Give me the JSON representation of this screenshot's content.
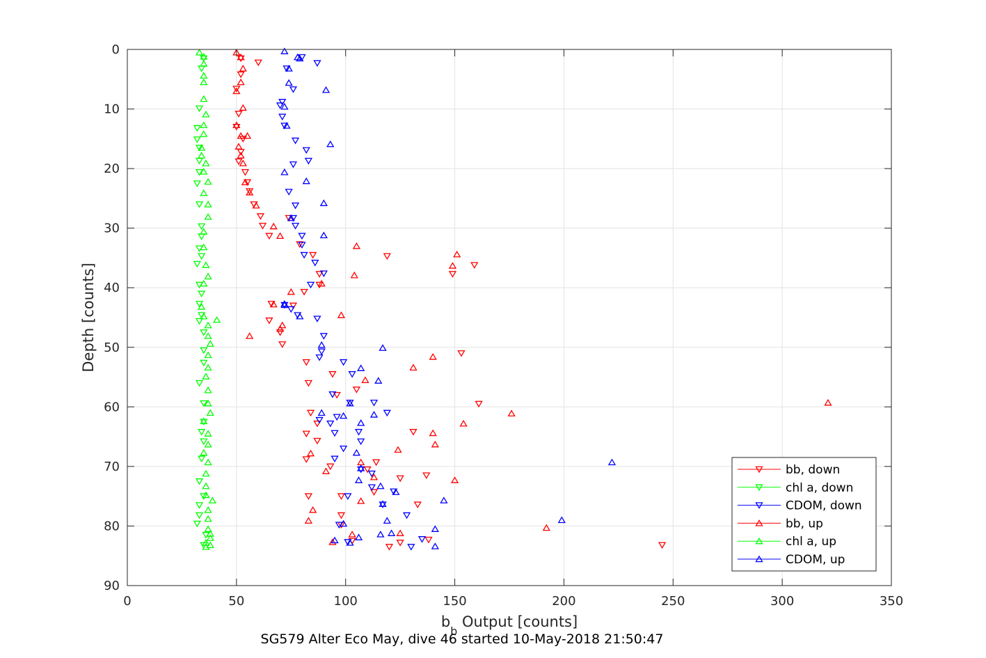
{
  "chart_data": {
    "type": "scatter",
    "caption": "SG579 Alter Eco May, dive 46 started 10-May-2018 21:50:47",
    "xlabel_main": "b",
    "xlabel_sub": "b",
    "xlabel_rest": " Output [counts]",
    "ylabel": "Depth [counts]",
    "xlim": [
      0,
      350
    ],
    "ylim": [
      0,
      90
    ],
    "y_reversed": true,
    "xticks": [
      "0",
      "50",
      "100",
      "150",
      "200",
      "250",
      "300",
      "350"
    ],
    "yticks": [
      "0",
      "10",
      "20",
      "30",
      "40",
      "50",
      "60",
      "70",
      "80",
      "90"
    ],
    "grid": true,
    "legend_position": "bottom-right",
    "legend": [
      {
        "label": "bb, down",
        "color": "#ff0000",
        "marker": "down"
      },
      {
        "label": "chl a, down",
        "color": "#00ff00",
        "marker": "down"
      },
      {
        "label": "CDOM, down",
        "color": "#0000ff",
        "marker": "down"
      },
      {
        "label": "bb, up",
        "color": "#ff0000",
        "marker": "up"
      },
      {
        "label": "chl a, up",
        "color": "#00ff00",
        "marker": "up"
      },
      {
        "label": "CDOM, up",
        "color": "#0000ff",
        "marker": "up"
      }
    ],
    "series": [
      {
        "name": "bb, down",
        "color": "#ff0000",
        "marker": "down",
        "points": [
          [
            52,
            1.5
          ],
          [
            60,
            2.2
          ],
          [
            52,
            4.2
          ],
          [
            50,
            6.6
          ],
          [
            51,
            10.8
          ],
          [
            50,
            13
          ],
          [
            53,
            15
          ],
          [
            52,
            17.2
          ],
          [
            51,
            18.8
          ],
          [
            54,
            20.6
          ],
          [
            55,
            22.3
          ],
          [
            56,
            23.8
          ],
          [
            58,
            26
          ],
          [
            61,
            28
          ],
          [
            62,
            29.6
          ],
          [
            65,
            31.3
          ],
          [
            74,
            28.3
          ],
          [
            79,
            32.7
          ],
          [
            85,
            34.5
          ],
          [
            88,
            37.7
          ],
          [
            81,
            40.7
          ],
          [
            119,
            34.7
          ],
          [
            149,
            37.7
          ],
          [
            159,
            36.2
          ],
          [
            88,
            39.5
          ],
          [
            76,
            43
          ],
          [
            66,
            42.7
          ],
          [
            65,
            45.5
          ],
          [
            70,
            47.5
          ],
          [
            71,
            49.5
          ],
          [
            82,
            52.5
          ],
          [
            83,
            56
          ],
          [
            94,
            54.5
          ],
          [
            96,
            58
          ],
          [
            105,
            57.1
          ],
          [
            84,
            61
          ],
          [
            87,
            62.8
          ],
          [
            82,
            64.5
          ],
          [
            87,
            65.7
          ],
          [
            82,
            68.8
          ],
          [
            93,
            70
          ],
          [
            83,
            75
          ],
          [
            98,
            75
          ],
          [
            98,
            79.8
          ],
          [
            103,
            82.5
          ],
          [
            120,
            83.5
          ],
          [
            98,
            78.2
          ],
          [
            110,
            70.5
          ],
          [
            113,
            74.3
          ],
          [
            125,
            72
          ],
          [
            133,
            76.4
          ],
          [
            138,
            82.3
          ],
          [
            125,
            82.8
          ],
          [
            137,
            71.5
          ],
          [
            131,
            64.2
          ],
          [
            114,
            69.3
          ],
          [
            153,
            51
          ],
          [
            161,
            59.5
          ],
          [
            245,
            83.2
          ]
        ]
      },
      {
        "name": "chl a, down",
        "color": "#00ff00",
        "marker": "down",
        "points": [
          [
            35,
            1.5
          ],
          [
            34,
            3.2
          ],
          [
            33,
            9.9
          ],
          [
            32,
            13.2
          ],
          [
            32,
            15.1
          ],
          [
            33,
            16.5
          ],
          [
            33,
            18.7
          ],
          [
            33,
            20.6
          ],
          [
            32,
            22.5
          ],
          [
            33,
            26
          ],
          [
            34,
            29.7
          ],
          [
            34,
            31.4
          ],
          [
            33,
            33.4
          ],
          [
            34,
            34.7
          ],
          [
            32,
            36
          ],
          [
            33,
            39.5
          ],
          [
            34,
            41
          ],
          [
            33,
            42.7
          ],
          [
            34,
            44.6
          ],
          [
            33,
            45.6
          ],
          [
            35,
            47.5
          ],
          [
            35,
            50.5
          ],
          [
            35,
            52.6
          ],
          [
            33,
            56
          ],
          [
            35,
            59.4
          ],
          [
            35,
            62.5
          ],
          [
            34,
            64.2
          ],
          [
            35,
            65.8
          ],
          [
            34,
            68.7
          ],
          [
            33,
            72.5
          ],
          [
            33,
            76.5
          ],
          [
            32,
            79.6
          ],
          [
            33,
            78.2
          ],
          [
            35,
            83.2
          ],
          [
            36,
            81.5
          ],
          [
            35,
            75
          ]
        ]
      },
      {
        "name": "CDOM, down",
        "color": "#0000ff",
        "marker": "down",
        "points": [
          [
            80,
            1.3
          ],
          [
            87,
            2.3
          ],
          [
            73,
            3.2
          ],
          [
            76,
            6.7
          ],
          [
            71,
            8.8
          ],
          [
            70,
            9.4
          ],
          [
            71,
            11.3
          ],
          [
            72,
            12.8
          ],
          [
            77,
            15.3
          ],
          [
            82,
            16.9
          ],
          [
            83,
            18.7
          ],
          [
            76,
            19.3
          ],
          [
            74,
            23.9
          ],
          [
            77,
            26.2
          ],
          [
            76,
            28.3
          ],
          [
            77,
            29.6
          ],
          [
            80,
            31.3
          ],
          [
            80,
            32.8
          ],
          [
            81,
            34.5
          ],
          [
            86,
            35.8
          ],
          [
            90,
            37.6
          ],
          [
            84,
            39.5
          ],
          [
            72,
            42.9
          ],
          [
            75,
            43.6
          ],
          [
            78,
            44.6
          ],
          [
            87,
            45.2
          ],
          [
            90,
            48.1
          ],
          [
            88,
            51.7
          ],
          [
            89,
            50.7
          ],
          [
            99,
            52.5
          ],
          [
            103,
            54.5
          ],
          [
            94,
            57.9
          ],
          [
            102,
            59.3
          ],
          [
            113,
            59.3
          ],
          [
            88,
            62.2
          ],
          [
            93,
            62.8
          ],
          [
            95,
            64.4
          ],
          [
            99,
            67
          ],
          [
            95,
            68.7
          ],
          [
            101,
            75
          ],
          [
            107,
            70.5
          ],
          [
            112,
            71.2
          ],
          [
            112,
            73.5
          ],
          [
            117,
            76.4
          ],
          [
            122,
            74.2
          ],
          [
            128,
            78.2
          ],
          [
            135,
            82.2
          ],
          [
            130,
            83.5
          ],
          [
            101,
            82.7
          ],
          [
            97,
            79.8
          ],
          [
            96,
            61.7
          ],
          [
            106,
            64.2
          ],
          [
            107,
            65.8
          ],
          [
            119,
            61
          ]
        ]
      },
      {
        "name": "bb, up",
        "color": "#ff0000",
        "marker": "up",
        "points": [
          [
            50,
            0.5
          ],
          [
            52,
            1.3
          ],
          [
            53,
            3.2
          ],
          [
            52,
            5.5
          ],
          [
            50,
            7
          ],
          [
            53,
            9.8
          ],
          [
            50,
            12.7
          ],
          [
            52,
            14.5
          ],
          [
            55,
            14.5
          ],
          [
            51,
            16.3
          ],
          [
            52,
            17.8
          ],
          [
            53,
            19.1
          ],
          [
            54,
            22.3
          ],
          [
            56,
            24
          ],
          [
            59,
            26.2
          ],
          [
            67,
            29.7
          ],
          [
            70,
            31.3
          ],
          [
            105,
            33
          ],
          [
            104,
            37.9
          ],
          [
            151,
            34.4
          ],
          [
            149,
            36.3
          ],
          [
            89,
            39.3
          ],
          [
            75,
            40.7
          ],
          [
            67,
            42.8
          ],
          [
            71,
            46.3
          ],
          [
            70,
            46.9
          ],
          [
            56,
            48.1
          ],
          [
            98,
            44.6
          ],
          [
            140,
            51.6
          ],
          [
            131,
            53.4
          ],
          [
            109,
            55.5
          ],
          [
            84,
            67.8
          ],
          [
            83,
            79.1
          ],
          [
            85,
            77.3
          ],
          [
            91,
            70.8
          ],
          [
            107,
            75.8
          ],
          [
            107,
            69.3
          ],
          [
            113,
            71.8
          ],
          [
            140,
            64.4
          ],
          [
            141,
            66.3
          ],
          [
            124,
            67.2
          ],
          [
            154,
            62.8
          ],
          [
            176,
            61.1
          ],
          [
            150,
            72.3
          ],
          [
            192,
            80.3
          ],
          [
            125,
            81.2
          ],
          [
            94,
            82.7
          ],
          [
            103,
            81.4
          ],
          [
            321,
            59.3
          ]
        ]
      },
      {
        "name": "chl a, up",
        "color": "#00ff00",
        "marker": "up",
        "points": [
          [
            33,
            0.5
          ],
          [
            35,
            1.2
          ],
          [
            35,
            2.4
          ],
          [
            35,
            4.4
          ],
          [
            35,
            5.5
          ],
          [
            35,
            8.3
          ],
          [
            36,
            10.9
          ],
          [
            35,
            12.7
          ],
          [
            35,
            14.2
          ],
          [
            34,
            16.5
          ],
          [
            34,
            17.8
          ],
          [
            36,
            19.1
          ],
          [
            35,
            20.5
          ],
          [
            37,
            22.2
          ],
          [
            35,
            24.1
          ],
          [
            37,
            26
          ],
          [
            37,
            28.1
          ],
          [
            35,
            30.6
          ],
          [
            35,
            33.2
          ],
          [
            36,
            36.2
          ],
          [
            37,
            38.1
          ],
          [
            35,
            39.3
          ],
          [
            34,
            43.2
          ],
          [
            35,
            44.8
          ],
          [
            41,
            45.4
          ],
          [
            37,
            46.3
          ],
          [
            37,
            48.1
          ],
          [
            38,
            49.4
          ],
          [
            37,
            51.3
          ],
          [
            37,
            53.4
          ],
          [
            36,
            54.9
          ],
          [
            37,
            57.2
          ],
          [
            37,
            59.4
          ],
          [
            38,
            61
          ],
          [
            35,
            62.4
          ],
          [
            37,
            64.5
          ],
          [
            37,
            66.3
          ],
          [
            35,
            67.7
          ],
          [
            37,
            69.3
          ],
          [
            36,
            71.2
          ],
          [
            36,
            73.3
          ],
          [
            36,
            74.8
          ],
          [
            39,
            75.7
          ],
          [
            37,
            77.3
          ],
          [
            37,
            78.8
          ],
          [
            37,
            80.5
          ],
          [
            38,
            81.3
          ],
          [
            38,
            82
          ],
          [
            36,
            82.8
          ],
          [
            38,
            83.2
          ],
          [
            36,
            83.5
          ]
        ]
      },
      {
        "name": "CDOM, up",
        "color": "#0000ff",
        "marker": "up",
        "points": [
          [
            72,
            0.3
          ],
          [
            78,
            1.3
          ],
          [
            79,
            1.5
          ],
          [
            74,
            3.2
          ],
          [
            74,
            5.6
          ],
          [
            91,
            6.8
          ],
          [
            72,
            9.6
          ],
          [
            73,
            12.8
          ],
          [
            93,
            15.9
          ],
          [
            72,
            20.6
          ],
          [
            82,
            22.1
          ],
          [
            90,
            25.8
          ],
          [
            90,
            31.2
          ],
          [
            75,
            28.3
          ],
          [
            72,
            42.9
          ],
          [
            72,
            42.7
          ],
          [
            79,
            44.8
          ],
          [
            89,
            49.6
          ],
          [
            117,
            50.1
          ],
          [
            107,
            53.5
          ],
          [
            115,
            55.6
          ],
          [
            102,
            59.4
          ],
          [
            113,
            61.3
          ],
          [
            99,
            61.5
          ],
          [
            89,
            61
          ],
          [
            107,
            62.7
          ],
          [
            105,
            67.7
          ],
          [
            106,
            72.3
          ],
          [
            107,
            70.3
          ],
          [
            116,
            73.3
          ],
          [
            123,
            74.3
          ],
          [
            119,
            79.1
          ],
          [
            145,
            75.7
          ],
          [
            141,
            80.5
          ],
          [
            121,
            81.2
          ],
          [
            116,
            81.4
          ],
          [
            99,
            79.6
          ],
          [
            106,
            81.9
          ],
          [
            95,
            82.4
          ],
          [
            102,
            82.8
          ],
          [
            117,
            76.3
          ],
          [
            141,
            83.4
          ],
          [
            222,
            69.3
          ],
          [
            199,
            79
          ]
        ]
      }
    ]
  }
}
